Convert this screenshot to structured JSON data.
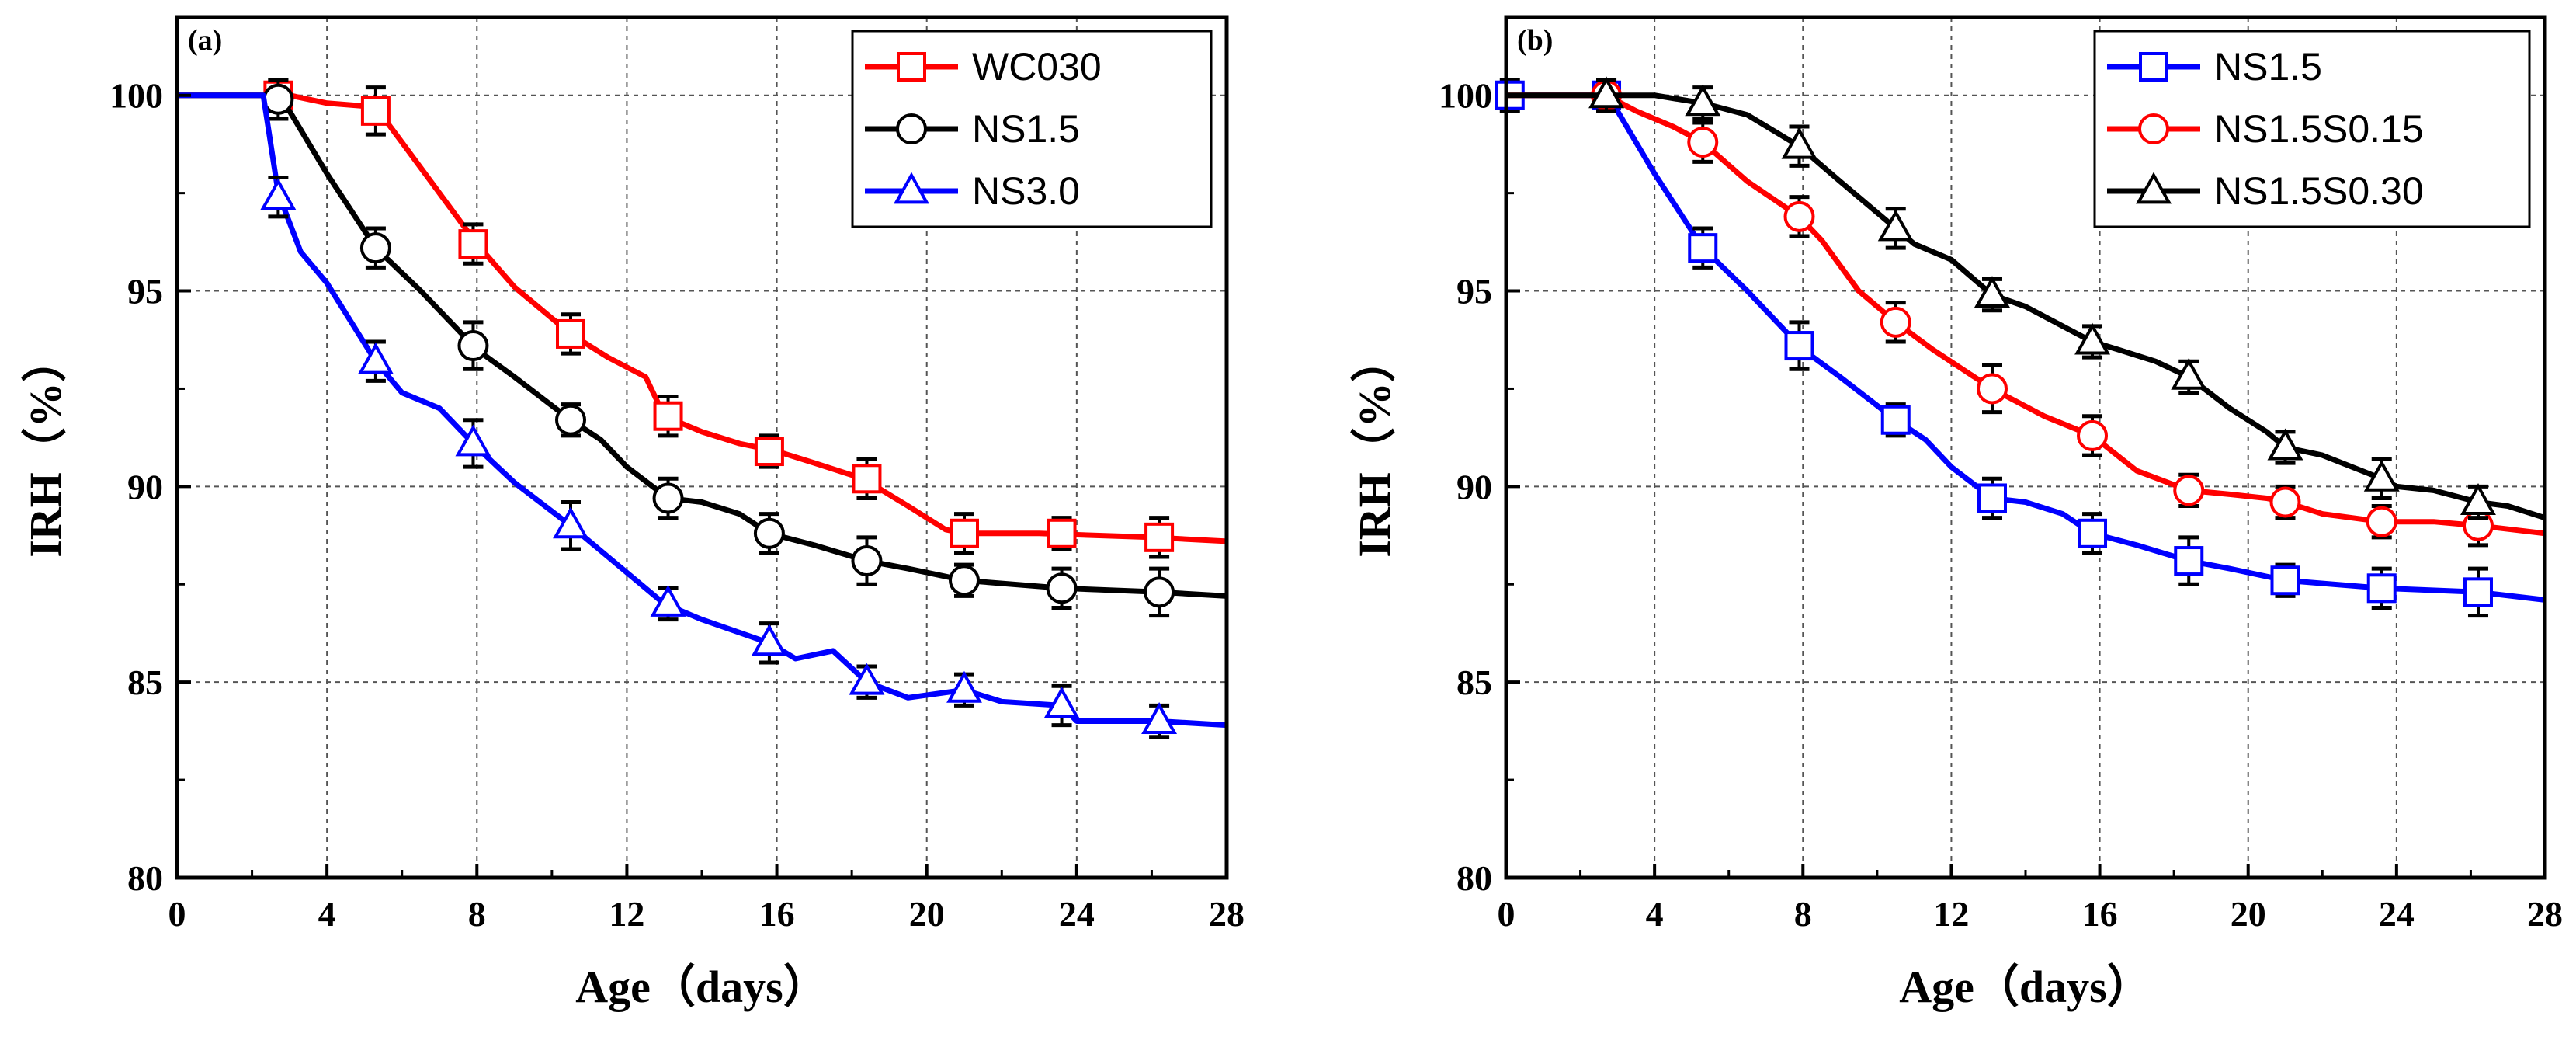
{
  "colors": {
    "red": "#ff0000",
    "black": "#000000",
    "blue": "#0000ff"
  },
  "chart_data": [
    {
      "type": "line",
      "panel_label": "(a)",
      "xlabel": "Age（days）",
      "ylabel": "IRH（%）",
      "xlim": [
        0,
        28
      ],
      "ylim": [
        80,
        102
      ],
      "x_ticks": [
        "0",
        "4",
        "8",
        "12",
        "16",
        "20",
        "24",
        "28"
      ],
      "y_ticks": [
        "80",
        "85",
        "90",
        "95",
        "100"
      ],
      "grid": true,
      "legend_position": "top-right",
      "series": [
        {
          "name": "WC030",
          "color": "#ff0000",
          "marker": "square",
          "curve": [
            [
              0,
              100
            ],
            [
              2.5,
              100
            ],
            [
              3,
              100
            ],
            [
              4,
              99.8
            ],
            [
              5.3,
              99.7
            ],
            [
              6,
              98.8
            ],
            [
              7,
              97.5
            ],
            [
              8,
              96.2
            ],
            [
              9,
              95.1
            ],
            [
              10,
              94.3
            ],
            [
              10.5,
              93.9
            ],
            [
              11.5,
              93.3
            ],
            [
              12.5,
              92.8
            ],
            [
              13,
              91.8
            ],
            [
              14,
              91.4
            ],
            [
              15,
              91.1
            ],
            [
              16,
              90.9
            ],
            [
              17,
              90.6
            ],
            [
              18.3,
              90.2
            ],
            [
              19.5,
              89.5
            ],
            [
              20.5,
              88.9
            ],
            [
              21,
              88.8
            ],
            [
              23,
              88.8
            ],
            [
              26,
              88.7
            ],
            [
              28,
              88.6
            ]
          ],
          "markers": [
            [
              2.7,
              100.0
            ],
            [
              5.3,
              99.6
            ],
            [
              7.9,
              96.2
            ],
            [
              10.5,
              93.9
            ],
            [
              13.1,
              91.8
            ],
            [
              15.8,
              90.9
            ],
            [
              18.4,
              90.2
            ],
            [
              21.0,
              88.8
            ],
            [
              23.6,
              88.8
            ],
            [
              26.2,
              88.7
            ]
          ],
          "errors": [
            0.4,
            0.6,
            0.5,
            0.5,
            0.5,
            0.4,
            0.5,
            0.5,
            0.4,
            0.5
          ]
        },
        {
          "name": "NS1.5",
          "color": "#000000",
          "marker": "circle",
          "curve": [
            [
              0,
              100
            ],
            [
              2.5,
              100
            ],
            [
              3,
              99.6
            ],
            [
              4,
              98
            ],
            [
              5.3,
              96.1
            ],
            [
              6.5,
              95
            ],
            [
              8,
              93.5
            ],
            [
              9,
              92.8
            ],
            [
              10.5,
              91.7
            ],
            [
              11.3,
              91.2
            ],
            [
              12,
              90.5
            ],
            [
              13.1,
              89.7
            ],
            [
              14,
              89.6
            ],
            [
              15,
              89.3
            ],
            [
              15.8,
              88.8
            ],
            [
              17,
              88.5
            ],
            [
              18.4,
              88.1
            ],
            [
              19.5,
              87.9
            ],
            [
              21,
              87.6
            ],
            [
              23.6,
              87.4
            ],
            [
              26.2,
              87.3
            ],
            [
              28,
              87.2
            ]
          ],
          "markers": [
            [
              2.7,
              99.9
            ],
            [
              5.3,
              96.1
            ],
            [
              7.9,
              93.6
            ],
            [
              10.5,
              91.7
            ],
            [
              13.1,
              89.7
            ],
            [
              15.8,
              88.8
            ],
            [
              18.4,
              88.1
            ],
            [
              21.0,
              87.6
            ],
            [
              23.6,
              87.4
            ],
            [
              26.2,
              87.3
            ]
          ],
          "errors": [
            0.5,
            0.5,
            0.6,
            0.4,
            0.5,
            0.5,
            0.6,
            0.4,
            0.5,
            0.6
          ]
        },
        {
          "name": "NS3.0",
          "color": "#0000ff",
          "marker": "triangle",
          "curve": [
            [
              0,
              100
            ],
            [
              2.3,
              100
            ],
            [
              2.7,
              97.5
            ],
            [
              3.3,
              96
            ],
            [
              4,
              95.2
            ],
            [
              5.3,
              93.2
            ],
            [
              6,
              92.4
            ],
            [
              7,
              92
            ],
            [
              8,
              91
            ],
            [
              9,
              90.1
            ],
            [
              10.5,
              89
            ],
            [
              11.5,
              88.2
            ],
            [
              13,
              87
            ],
            [
              14,
              86.6
            ],
            [
              15.8,
              86
            ],
            [
              16.5,
              85.6
            ],
            [
              17.5,
              85.8
            ],
            [
              18.4,
              85
            ],
            [
              19.5,
              84.6
            ],
            [
              21,
              84.8
            ],
            [
              22,
              84.5
            ],
            [
              23.6,
              84.4
            ],
            [
              24,
              84
            ],
            [
              26.2,
              84
            ],
            [
              28,
              83.9
            ]
          ],
          "markers": [
            [
              2.7,
              97.4
            ],
            [
              5.3,
              93.2
            ],
            [
              7.9,
              91.1
            ],
            [
              10.5,
              89.0
            ],
            [
              13.1,
              87.0
            ],
            [
              15.8,
              86.0
            ],
            [
              18.4,
              85.0
            ],
            [
              21.0,
              84.8
            ],
            [
              23.6,
              84.4
            ],
            [
              26.2,
              84.0
            ]
          ],
          "errors": [
            0.5,
            0.5,
            0.6,
            0.6,
            0.4,
            0.5,
            0.4,
            0.4,
            0.5,
            0.4
          ]
        }
      ]
    },
    {
      "type": "line",
      "panel_label": "(b)",
      "xlabel": "Age（days）",
      "ylabel": "IRH（%）",
      "xlim": [
        0,
        28
      ],
      "ylim": [
        80,
        102
      ],
      "x_ticks": [
        "0",
        "4",
        "8",
        "12",
        "16",
        "20",
        "24",
        "28"
      ],
      "y_ticks": [
        "80",
        "85",
        "90",
        "95",
        "100"
      ],
      "grid": true,
      "legend_position": "top-right",
      "series": [
        {
          "name": "NS1.5",
          "color": "#0000ff",
          "marker": "square",
          "curve": [
            [
              0,
              100
            ],
            [
              2.7,
              100
            ],
            [
              3,
              99.6
            ],
            [
              4,
              98
            ],
            [
              5.3,
              96.1
            ],
            [
              6.5,
              95
            ],
            [
              8,
              93.5
            ],
            [
              9,
              92.8
            ],
            [
              10.5,
              91.7
            ],
            [
              11.3,
              91.2
            ],
            [
              12,
              90.5
            ],
            [
              13.1,
              89.7
            ],
            [
              14,
              89.6
            ],
            [
              15,
              89.3
            ],
            [
              15.8,
              88.8
            ],
            [
              17,
              88.5
            ],
            [
              18.4,
              88.1
            ],
            [
              19.5,
              87.9
            ],
            [
              21,
              87.6
            ],
            [
              23.6,
              87.4
            ],
            [
              26.2,
              87.3
            ],
            [
              28,
              87.1
            ]
          ],
          "markers": [
            [
              0.1,
              100.0
            ],
            [
              2.7,
              100.0
            ],
            [
              5.3,
              96.1
            ],
            [
              7.9,
              93.6
            ],
            [
              10.5,
              91.7
            ],
            [
              13.1,
              89.7
            ],
            [
              15.8,
              88.8
            ],
            [
              18.4,
              88.1
            ],
            [
              21.0,
              87.6
            ],
            [
              23.6,
              87.4
            ],
            [
              26.2,
              87.3
            ]
          ],
          "errors": [
            0.4,
            0.4,
            0.5,
            0.6,
            0.4,
            0.5,
            0.5,
            0.6,
            0.4,
            0.5,
            0.6
          ]
        },
        {
          "name": "NS1.5S0.15",
          "color": "#ff0000",
          "marker": "circle",
          "curve": [
            [
              0,
              100
            ],
            [
              2.7,
              100
            ],
            [
              3.5,
              99.6
            ],
            [
              4.5,
              99.2
            ],
            [
              5.3,
              98.8
            ],
            [
              6.5,
              97.8
            ],
            [
              7.9,
              96.9
            ],
            [
              8.5,
              96.3
            ],
            [
              9.5,
              95
            ],
            [
              10.5,
              94.2
            ],
            [
              11.5,
              93.5
            ],
            [
              13.1,
              92.5
            ],
            [
              14.5,
              91.8
            ],
            [
              15.8,
              91.3
            ],
            [
              17,
              90.4
            ],
            [
              18.4,
              89.9
            ],
            [
              19.5,
              89.8
            ],
            [
              20.5,
              89.7
            ],
            [
              21,
              89.6
            ],
            [
              22,
              89.3
            ],
            [
              23.6,
              89.1
            ],
            [
              25,
              89.1
            ],
            [
              26.2,
              89.0
            ],
            [
              28,
              88.8
            ]
          ],
          "markers": [
            [
              2.7,
              100.0
            ],
            [
              5.3,
              98.8
            ],
            [
              7.9,
              96.9
            ],
            [
              10.5,
              94.2
            ],
            [
              13.1,
              92.5
            ],
            [
              15.8,
              91.3
            ],
            [
              18.4,
              89.9
            ],
            [
              21.0,
              89.6
            ],
            [
              23.6,
              89.1
            ],
            [
              26.2,
              89.0
            ]
          ],
          "errors": [
            0.4,
            0.5,
            0.5,
            0.5,
            0.6,
            0.5,
            0.4,
            0.4,
            0.4,
            0.5
          ]
        },
        {
          "name": "NS1.5S0.30",
          "color": "#000000",
          "marker": "triangle",
          "curve": [
            [
              0,
              100
            ],
            [
              2.7,
              100
            ],
            [
              4,
              100
            ],
            [
              5.3,
              99.8
            ],
            [
              6.5,
              99.5
            ],
            [
              7.9,
              98.7
            ],
            [
              9,
              97.8
            ],
            [
              10.5,
              96.6
            ],
            [
              11,
              96.2
            ],
            [
              12,
              95.8
            ],
            [
              13.1,
              94.9
            ],
            [
              14,
              94.6
            ],
            [
              15,
              94.1
            ],
            [
              15.8,
              93.7
            ],
            [
              16.5,
              93.5
            ],
            [
              17.5,
              93.2
            ],
            [
              18.4,
              92.8
            ],
            [
              19.5,
              92
            ],
            [
              20.5,
              91.4
            ],
            [
              21,
              91.0
            ],
            [
              22,
              90.8
            ],
            [
              23.6,
              90.2
            ],
            [
              24,
              90
            ],
            [
              25,
              89.9
            ],
            [
              26.2,
              89.6
            ],
            [
              27,
              89.5
            ],
            [
              28,
              89.2
            ]
          ],
          "markers": [
            [
              2.7,
              100.0
            ],
            [
              5.3,
              99.8
            ],
            [
              7.9,
              98.7
            ],
            [
              10.5,
              96.6
            ],
            [
              13.1,
              94.9
            ],
            [
              15.8,
              93.7
            ],
            [
              18.4,
              92.8
            ],
            [
              21.0,
              91.0
            ],
            [
              23.6,
              90.2
            ],
            [
              26.2,
              89.6
            ]
          ],
          "errors": [
            0.4,
            0.4,
            0.5,
            0.5,
            0.4,
            0.4,
            0.4,
            0.4,
            0.5,
            0.4
          ]
        }
      ]
    }
  ]
}
